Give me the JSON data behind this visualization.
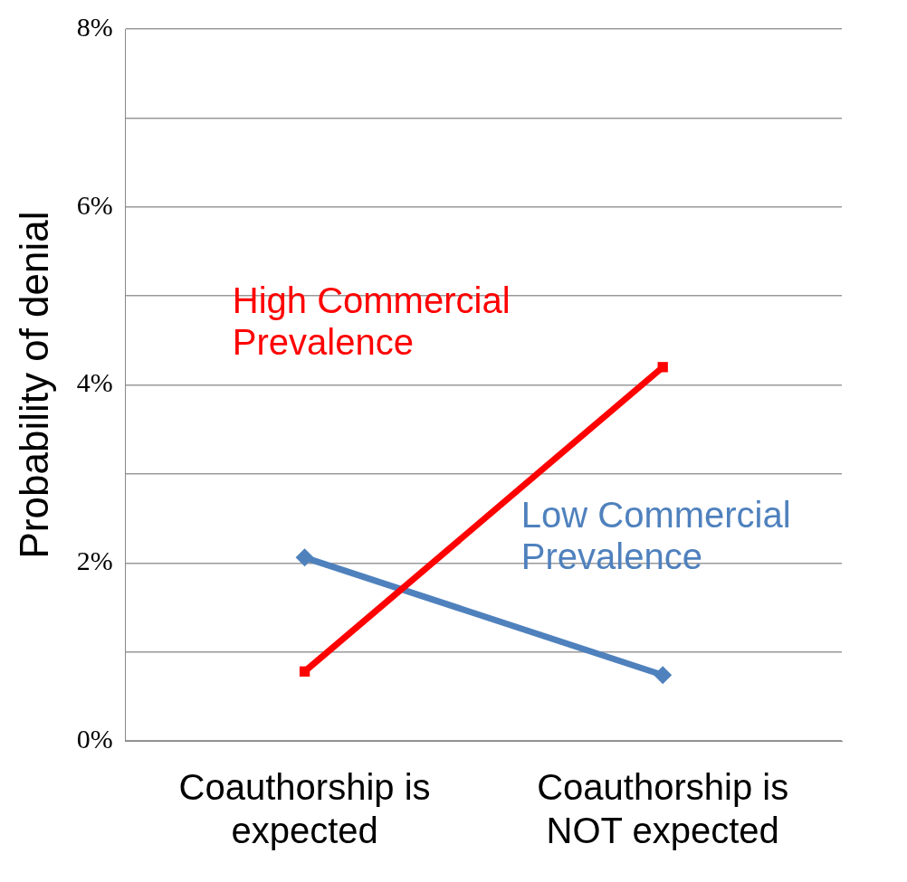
{
  "chart_data": {
    "type": "line",
    "ylabel": "Probability of denial",
    "categories": [
      "Coauthorship is expected",
      "Coauthorship is NOT expected"
    ],
    "series": [
      {
        "name": "High Commercial Prevalence",
        "color": "#ff0000",
        "values": [
          0.78,
          4.2
        ],
        "marker": "square"
      },
      {
        "name": "Low Commercial Prevalence",
        "color": "#4f81bd",
        "values": [
          2.06,
          0.74
        ],
        "marker": "diamond"
      }
    ],
    "ylim": [
      0,
      8
    ],
    "yticks": [
      {
        "value": 0,
        "label": "0%"
      },
      {
        "value": 1,
        "label": null
      },
      {
        "value": 2,
        "label": "2%"
      },
      {
        "value": 3,
        "label": null
      },
      {
        "value": 4,
        "label": "4%"
      },
      {
        "value": 5,
        "label": null
      },
      {
        "value": 6,
        "label": "6%"
      },
      {
        "value": 7,
        "label": null
      },
      {
        "value": 8,
        "label": "8%"
      }
    ],
    "grid": "y",
    "legend": false,
    "line_style": "solid"
  }
}
